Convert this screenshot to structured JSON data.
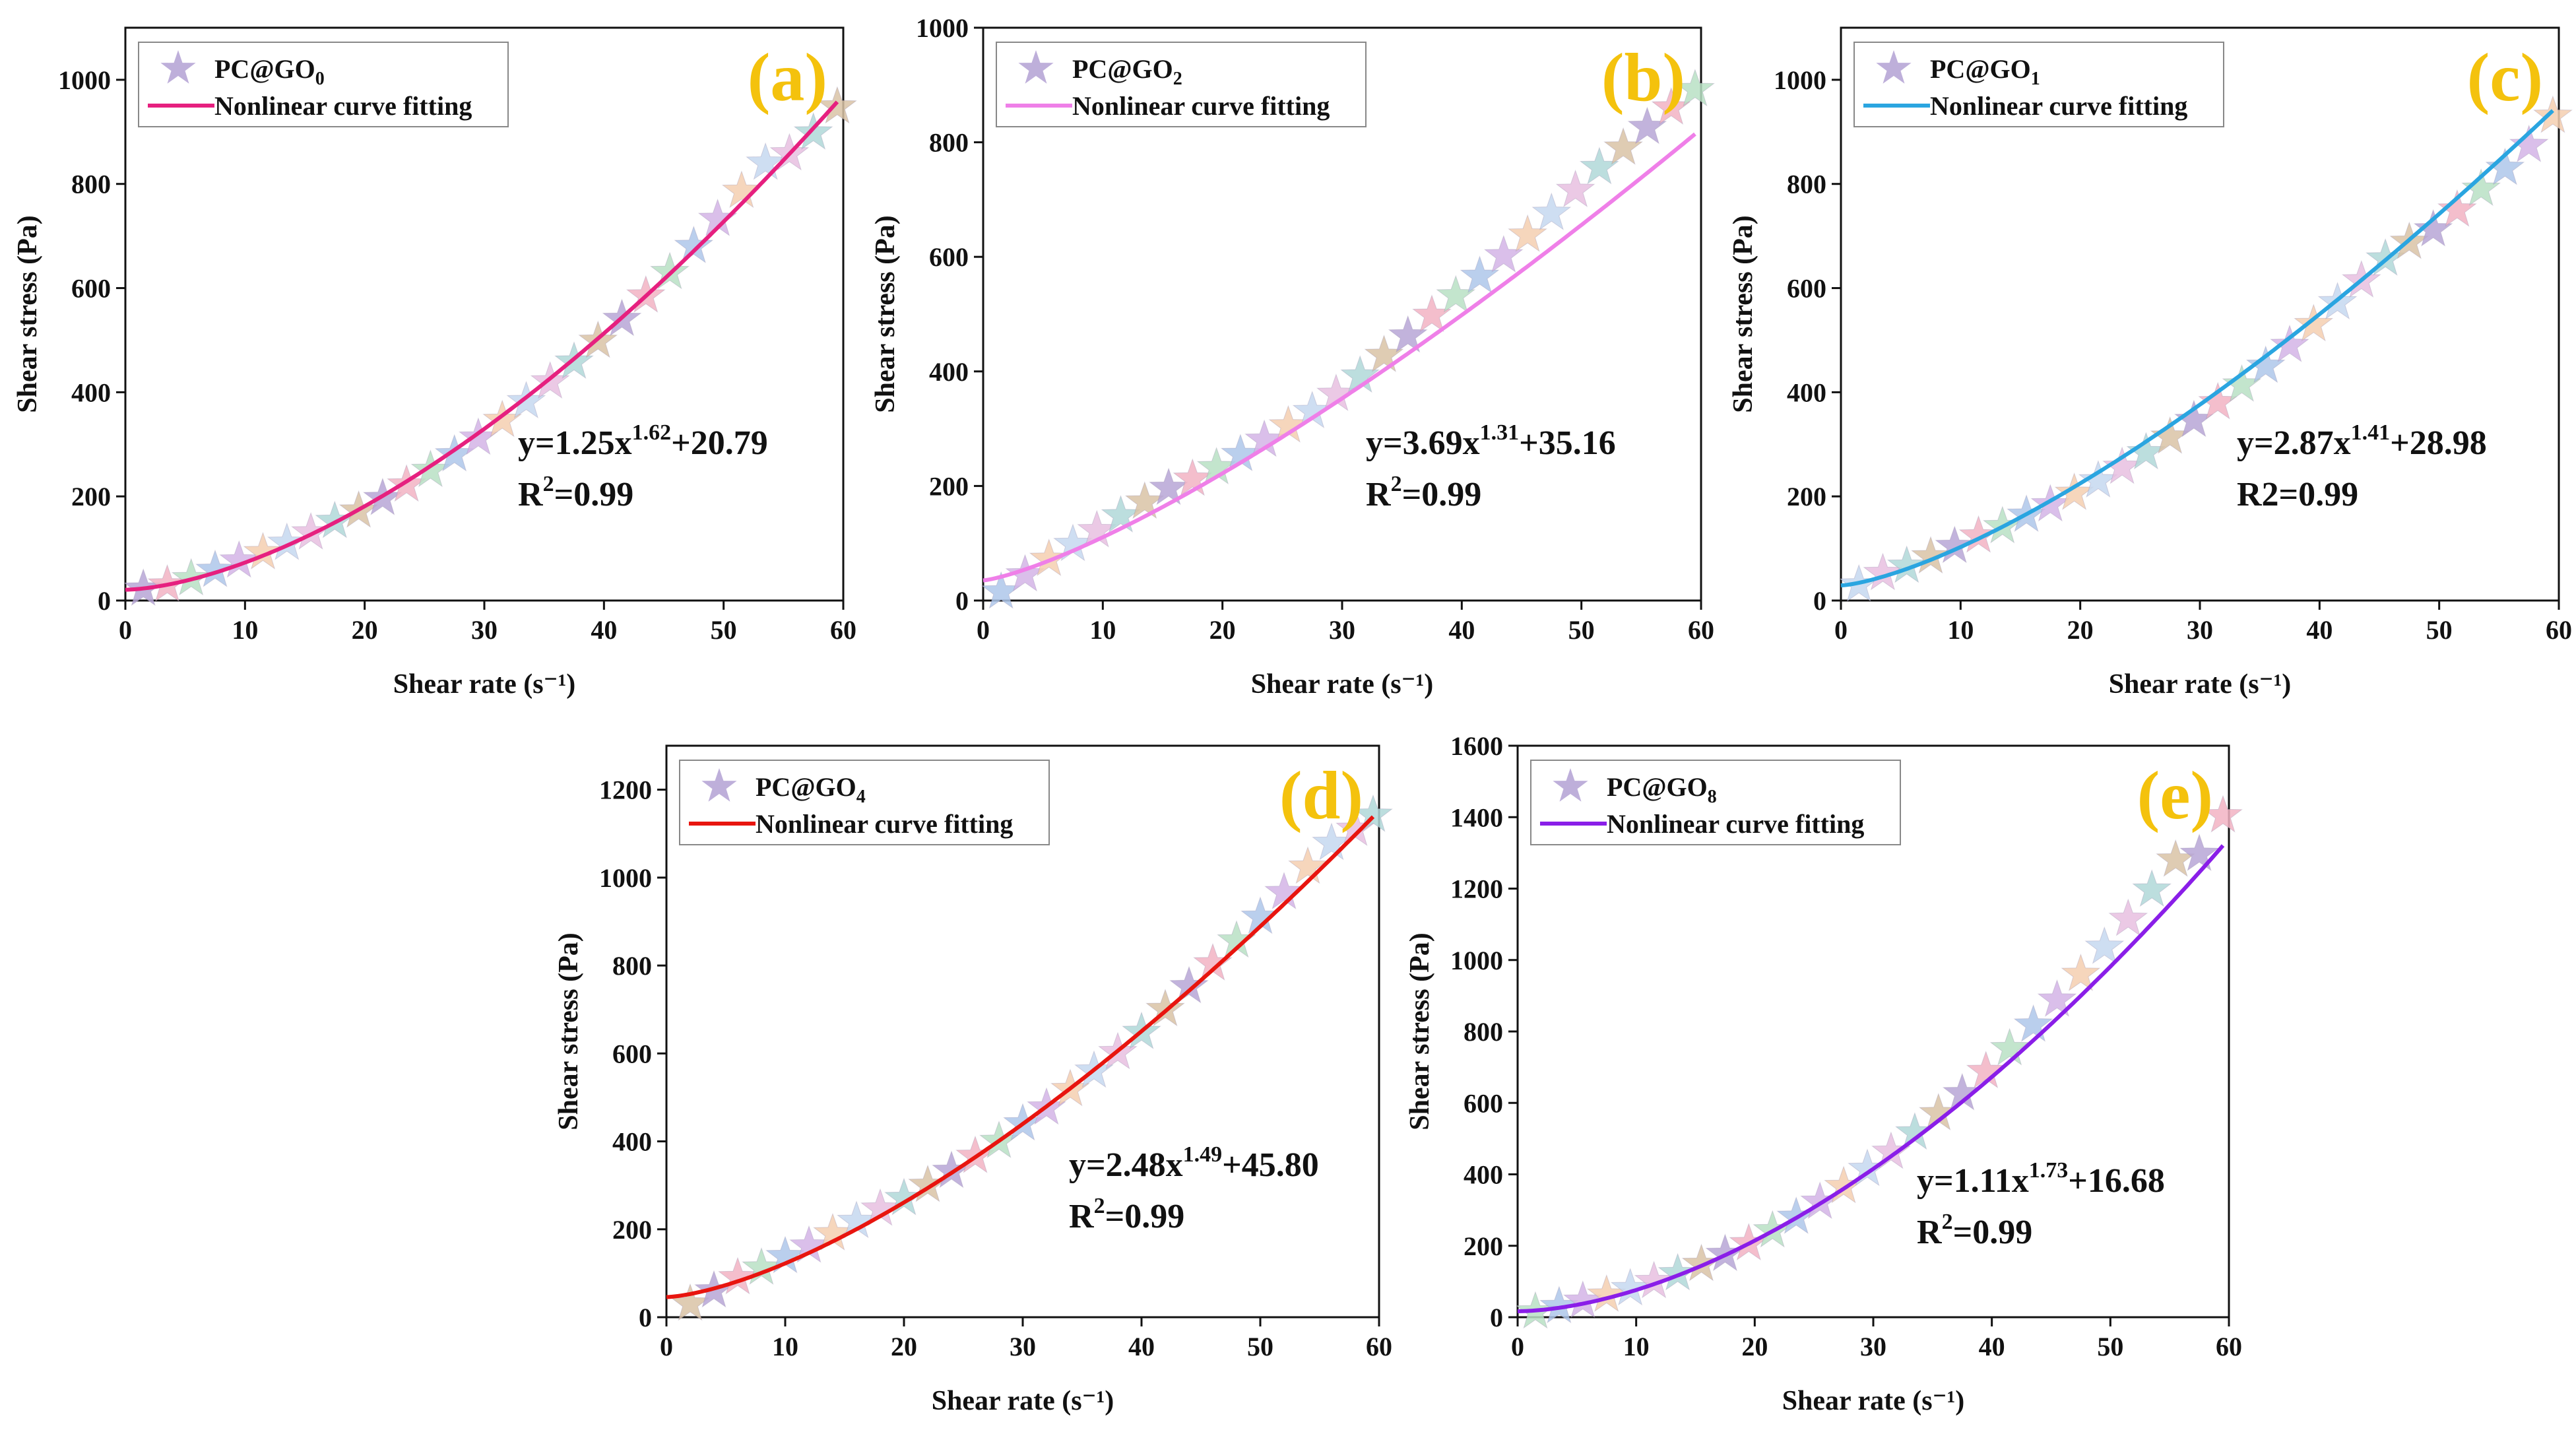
{
  "chart_data": [
    {
      "id": "a",
      "type": "scatter",
      "panel_label": "(a)",
      "panel_color": "#f4c20d",
      "xlabel": "Shear rate (s⁻¹)",
      "ylabel": "Shear stress (Pa)",
      "xlim": [
        0,
        60
      ],
      "ylim": [
        0,
        1100
      ],
      "xticks": [
        0,
        10,
        20,
        30,
        40,
        50,
        60
      ],
      "yticks": [
        0,
        200,
        400,
        600,
        800,
        1000
      ],
      "legend": {
        "sample": "PC@GO",
        "subscript": "0",
        "fit_label": "Nonlinear curve fitting",
        "position": "top-left"
      },
      "fit": {
        "a": 1.25,
        "b": 1.62,
        "c": 20.79,
        "color": "#e6207f",
        "equation_main": "y=1.25x",
        "equation_exp": "1.62",
        "equation_tail": "+20.79",
        "r2_label": "R",
        "r2_exp": "2",
        "r2_value": "=0.99"
      },
      "series": [
        {
          "name": "PC@GO0",
          "x": [
            1.5,
            3.5,
            5.5,
            7.5,
            9.5,
            11.5,
            13.5,
            15.5,
            17.5,
            19.5,
            21.5,
            23.5,
            25.5,
            27.5,
            29.5,
            31.5,
            33.5,
            35.5,
            37.5,
            39.5,
            41.5,
            43.5,
            45.5,
            47.5,
            49.5,
            51.5,
            53.5,
            55.5,
            57.5,
            59.5
          ],
          "y": [
            22,
            30,
            42,
            58,
            76,
            92,
            110,
            130,
            152,
            172,
            196,
            222,
            250,
            280,
            312,
            346,
            382,
            420,
            458,
            498,
            540,
            585,
            630,
            680,
            732,
            786,
            840,
            858,
            898,
            948
          ]
        }
      ]
    },
    {
      "id": "b",
      "type": "scatter",
      "panel_label": "(b)",
      "panel_color": "#f4c20d",
      "xlabel": "Shear rate (s⁻¹)",
      "ylabel": "Shear stress (Pa)",
      "xlim": [
        0,
        60
      ],
      "ylim": [
        0,
        1000
      ],
      "xticks": [
        0,
        10,
        20,
        30,
        40,
        50,
        60
      ],
      "yticks": [
        0,
        200,
        400,
        600,
        800,
        1000
      ],
      "legend": {
        "sample": "PC@GO",
        "subscript": "2",
        "fit_label": "Nonlinear curve fitting",
        "position": "top-left"
      },
      "fit": {
        "a": 3.69,
        "b": 1.31,
        "c": 35.16,
        "color": "#ef7fe8",
        "equation_main": "y=3.69x",
        "equation_exp": "1.31",
        "equation_tail": "+35.16",
        "r2_label": "R",
        "r2_exp": "2",
        "r2_value": "=0.99"
      },
      "series": [
        {
          "name": "PC@GO2",
          "x": [
            1.5,
            3.5,
            5.5,
            7.5,
            9.5,
            11.5,
            13.5,
            15.5,
            17.5,
            19.5,
            21.5,
            23.5,
            25.5,
            27.5,
            29.5,
            31.5,
            33.5,
            35.5,
            37.5,
            39.5,
            41.5,
            43.5,
            45.5,
            47.5,
            49.5,
            51.5,
            53.5,
            55.5,
            57.5,
            59.5
          ],
          "y": [
            15,
            45,
            72,
            98,
            122,
            148,
            172,
            196,
            212,
            232,
            255,
            280,
            305,
            330,
            360,
            392,
            428,
            462,
            498,
            532,
            566,
            602,
            638,
            676,
            716,
            756,
            790,
            826,
            860,
            892
          ]
        }
      ]
    },
    {
      "id": "c",
      "type": "scatter",
      "panel_label": "(c)",
      "panel_color": "#f4c20d",
      "xlabel": "Shear rate (s⁻¹)",
      "ylabel": "Shear stress (Pa)",
      "xlim": [
        0,
        60
      ],
      "ylim": [
        0,
        1100
      ],
      "xticks": [
        0,
        10,
        20,
        30,
        40,
        50,
        60
      ],
      "yticks": [
        0,
        200,
        400,
        600,
        800,
        1000
      ],
      "legend": {
        "sample": "PC@GO",
        "subscript": "1",
        "fit_label": "Nonlinear curve fitting",
        "position": "top-left"
      },
      "fit": {
        "a": 2.87,
        "b": 1.41,
        "c": 28.98,
        "color": "#2aa5e0",
        "equation_main": "y=2.87x",
        "equation_exp": "1.41",
        "equation_tail": "+28.98",
        "r2_label": "R2=0.99",
        "r2_exp": "",
        "r2_value": ""
      },
      "series": [
        {
          "name": "PC@GO1",
          "x": [
            1.5,
            3.5,
            5.5,
            7.5,
            9.5,
            11.5,
            13.5,
            15.5,
            17.5,
            19.5,
            21.5,
            23.5,
            25.5,
            27.5,
            29.5,
            31.5,
            33.5,
            35.5,
            37.5,
            39.5,
            41.5,
            43.5,
            45.5,
            47.5,
            49.5,
            51.5,
            53.5,
            55.5,
            57.5,
            59.5
          ],
          "y": [
            30,
            52,
            66,
            84,
            104,
            124,
            142,
            164,
            184,
            206,
            230,
            256,
            284,
            314,
            346,
            380,
            414,
            450,
            490,
            530,
            572,
            614,
            656,
            688,
            712,
            750,
            790,
            830,
            874,
            930
          ]
        }
      ]
    },
    {
      "id": "d",
      "type": "scatter",
      "panel_label": "(d)",
      "panel_color": "#f4c20d",
      "xlabel": "Shear rate (s⁻¹)",
      "ylabel": "Shear stress (Pa)",
      "xlim": [
        0,
        60
      ],
      "ylim": [
        0,
        1300
      ],
      "xticks": [
        0,
        10,
        20,
        30,
        40,
        50,
        60
      ],
      "yticks": [
        0,
        200,
        400,
        600,
        800,
        1000,
        1200
      ],
      "legend": {
        "sample": "PC@GO",
        "subscript": "4",
        "fit_label": "Nonlinear curve fitting",
        "position": "top-left"
      },
      "fit": {
        "a": 2.48,
        "b": 1.49,
        "c": 45.8,
        "color": "#e8150f",
        "equation_main": "y=2.48x",
        "equation_exp": "1.49",
        "equation_tail": "+45.80",
        "r2_label": "R",
        "r2_exp": "2",
        "r2_value": "=0.99"
      },
      "series": [
        {
          "name": "PC@GO4",
          "x": [
            2,
            4,
            6,
            8,
            10,
            12,
            14,
            16,
            18,
            20,
            22,
            24,
            26,
            28,
            30,
            32,
            34,
            36,
            38,
            40,
            42,
            44,
            46,
            48,
            50,
            52,
            54,
            56,
            58,
            59.5
          ],
          "y": [
            30,
            60,
            90,
            112,
            138,
            162,
            190,
            218,
            246,
            270,
            300,
            332,
            366,
            400,
            440,
            476,
            518,
            560,
            602,
            648,
            700,
            752,
            804,
            856,
            910,
            966,
            1024,
            1078,
            1110,
            1142
          ]
        }
      ]
    },
    {
      "id": "e",
      "type": "scatter",
      "panel_label": "(e)",
      "panel_color": "#f4c20d",
      "xlabel": "Shear rate (s⁻¹)",
      "ylabel": "Shear stress (Pa)",
      "xlim": [
        0,
        60
      ],
      "ylim": [
        0,
        1600
      ],
      "xticks": [
        0,
        10,
        20,
        30,
        40,
        50,
        60
      ],
      "yticks": [
        0,
        200,
        400,
        600,
        800,
        1000,
        1200,
        1400,
        1600
      ],
      "legend": {
        "sample": "PC@GO",
        "subscript": "8",
        "fit_label": "Nonlinear curve fitting",
        "position": "top-left"
      },
      "fit": {
        "a": 1.11,
        "b": 1.73,
        "c": 16.68,
        "color": "#8a1ee8",
        "equation_main": "y=1.11x",
        "equation_exp": "1.73",
        "equation_tail": "+16.68",
        "r2_label": "R",
        "r2_exp": "2",
        "r2_value": "=0.99"
      },
      "series": [
        {
          "name": "PC@GO8",
          "x": [
            1.5,
            3.5,
            5.5,
            7.5,
            9.5,
            11.5,
            13.5,
            15.5,
            17.5,
            19.5,
            21.5,
            23.5,
            25.5,
            27.5,
            29.5,
            31.5,
            33.5,
            35.5,
            37.5,
            39.5,
            41.5,
            43.5,
            45.5,
            47.5,
            49.5,
            51.5,
            53.5,
            55.5,
            57.5,
            59.5
          ],
          "y": [
            15,
            30,
            45,
            62,
            80,
            100,
            122,
            148,
            176,
            206,
            242,
            280,
            322,
            366,
            414,
            462,
            516,
            570,
            626,
            688,
            752,
            818,
            888,
            960,
            1036,
            1114,
            1196,
            1280,
            1296,
            1404
          ]
        }
      ]
    }
  ],
  "star_palette": [
    "#b7a6d6",
    "#f2b3c3",
    "#b9e0c4",
    "#aec7ea",
    "#d3b4e6",
    "#f4cfb0",
    "#c6d8f0",
    "#e8bfe0",
    "#b0d8d8",
    "#d9c3a6"
  ]
}
